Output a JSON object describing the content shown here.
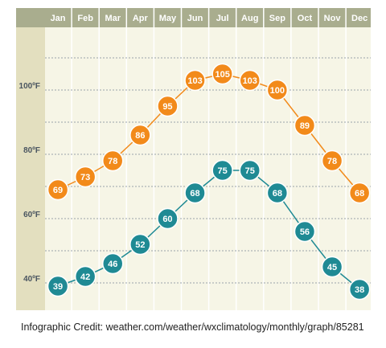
{
  "chart_data": {
    "type": "line",
    "categories": [
      "Jan",
      "Feb",
      "Mar",
      "Apr",
      "May",
      "Jun",
      "Jul",
      "Aug",
      "Sep",
      "Oct",
      "Nov",
      "Dec"
    ],
    "series": [
      {
        "values": [
          69,
          73,
          78,
          86,
          95,
          103,
          105,
          103,
          100,
          89,
          78,
          68
        ]
      },
      {
        "values": [
          39,
          42,
          46,
          52,
          60,
          68,
          75,
          75,
          68,
          56,
          45,
          38
        ]
      }
    ],
    "yticks": [
      "40ºF",
      "60ºF",
      "80ºF",
      "100ºF"
    ],
    "ylim": [
      35,
      118
    ],
    "grid": true
  },
  "colors": {
    "high": "#f28a1a",
    "low": "#1f8a94",
    "header": "#a9ad8e",
    "plot_bg": "#f6f5e6",
    "axis_bg": "#e3dfbf"
  },
  "credit": "Infographic Credit: weather.com/weather/wxclimatology/monthly/graph/85281"
}
